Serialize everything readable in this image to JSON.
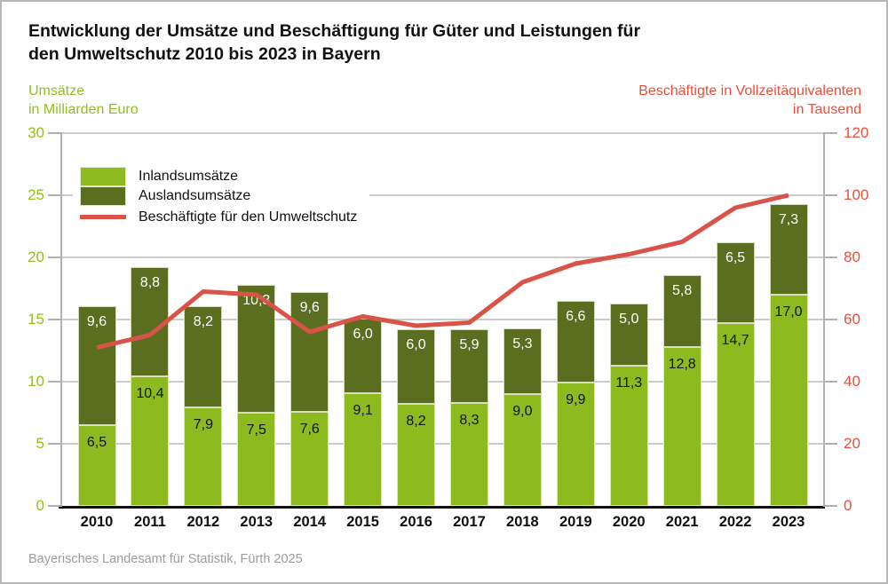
{
  "title": {
    "line1": "Entwicklung der Umsätze und Beschäftigung für Güter und Leistungen für",
    "line2": "den Umweltschutz 2010 bis 2023 in Bayern"
  },
  "left_axis": {
    "label_line1": "Umsätze",
    "label_line2": "in Milliarden Euro",
    "ticks": [
      0,
      5,
      10,
      15,
      20,
      25,
      30
    ],
    "max": 30
  },
  "right_axis": {
    "label_line1": "Beschäftigte in Vollzeitäquivalenten",
    "label_line2": "in Tausend",
    "ticks": [
      0,
      20,
      40,
      60,
      80,
      100,
      120
    ],
    "max": 120
  },
  "footer": "Bayerisches Landesamt für Statistik, Fürth 2025",
  "colors": {
    "inland_green": "#8dbb1f",
    "ausland_green": "#5b6e1f",
    "employment_red_line": "#d95348",
    "green_text": "#95bd20",
    "red_text": "#e8503c",
    "grid": "#cccccc",
    "axis_gray": "#b0b0b0",
    "bar_label_light": "#ffffff",
    "bar_label_dark": "#111111"
  },
  "chart_data": {
    "type": "bar",
    "subtype": "stacked-bars-with-line-overlay",
    "categories": [
      "2010",
      "2011",
      "2012",
      "2013",
      "2014",
      "2015",
      "2016",
      "2017",
      "2018",
      "2019",
      "2020",
      "2021",
      "2022",
      "2023"
    ],
    "series": [
      {
        "name": "Inlandsumsätze",
        "axis": "left",
        "values": [
          6.5,
          10.4,
          7.9,
          7.5,
          7.6,
          9.1,
          8.2,
          8.3,
          9.0,
          9.9,
          11.3,
          12.8,
          14.7,
          17.0
        ],
        "labels": [
          "6,5",
          "10,4",
          "7,9",
          "7,5",
          "7,6",
          "9,1",
          "8,2",
          "8,3",
          "9,0",
          "9,9",
          "11,3",
          "12,8",
          "14,7",
          "17,0"
        ]
      },
      {
        "name": "Auslandsumsätze",
        "axis": "left",
        "values": [
          9.6,
          8.8,
          8.2,
          10.3,
          9.6,
          6.0,
          6.0,
          5.9,
          5.3,
          6.6,
          5.0,
          5.8,
          6.5,
          7.3
        ],
        "labels": [
          "9,6",
          "8,8",
          "8,2",
          "10,3",
          "9,6",
          "6,0",
          "6,0",
          "5,9",
          "5,3",
          "6,6",
          "5,0",
          "5,8",
          "6,5",
          "7,3"
        ]
      }
    ],
    "line_series": {
      "name": "Beschäftigte für den Umweltschutz",
      "axis": "right",
      "values": [
        51,
        55,
        69,
        68,
        56,
        61,
        58,
        59,
        72,
        78,
        81,
        85,
        96,
        100
      ]
    },
    "ylim_left": [
      0,
      30
    ],
    "ylim_right": [
      0,
      120
    ],
    "grid": true,
    "legend_position": "top-left"
  }
}
